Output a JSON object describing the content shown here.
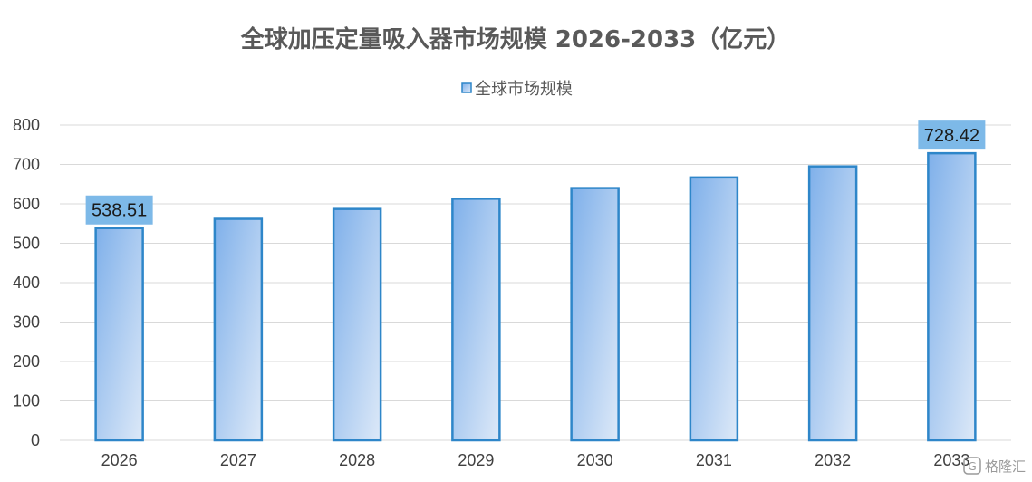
{
  "chart_data": {
    "type": "bar",
    "title": "全球加压定量吸入器市场规模 2026-2033（亿元）",
    "legend": {
      "position": "top",
      "entries": [
        "全球市场规模"
      ]
    },
    "categories": [
      "2026",
      "2027",
      "2028",
      "2029",
      "2030",
      "2031",
      "2032",
      "2033"
    ],
    "series": [
      {
        "name": "全球市场规模",
        "values": [
          538.51,
          562,
          587,
          613,
          640,
          667,
          695,
          728.42
        ]
      }
    ],
    "data_labels": [
      {
        "index": 0,
        "text": "538.51"
      },
      {
        "index": 7,
        "text": "728.42"
      }
    ],
    "y_ticks": [
      "0",
      "100",
      "200",
      "300",
      "400",
      "500",
      "600",
      "700",
      "800"
    ],
    "ylim": [
      0,
      800
    ],
    "grid": true,
    "colors": {
      "bar_fill_start": "#7fb0ea",
      "bar_fill_end": "#dde9f8",
      "bar_stroke": "#2e86c9",
      "label_box": "#7db9e8",
      "grid": "#d9d9d9",
      "text": "#404040"
    }
  },
  "watermark": {
    "text": "格隆汇",
    "icon": "g-logo-icon"
  }
}
